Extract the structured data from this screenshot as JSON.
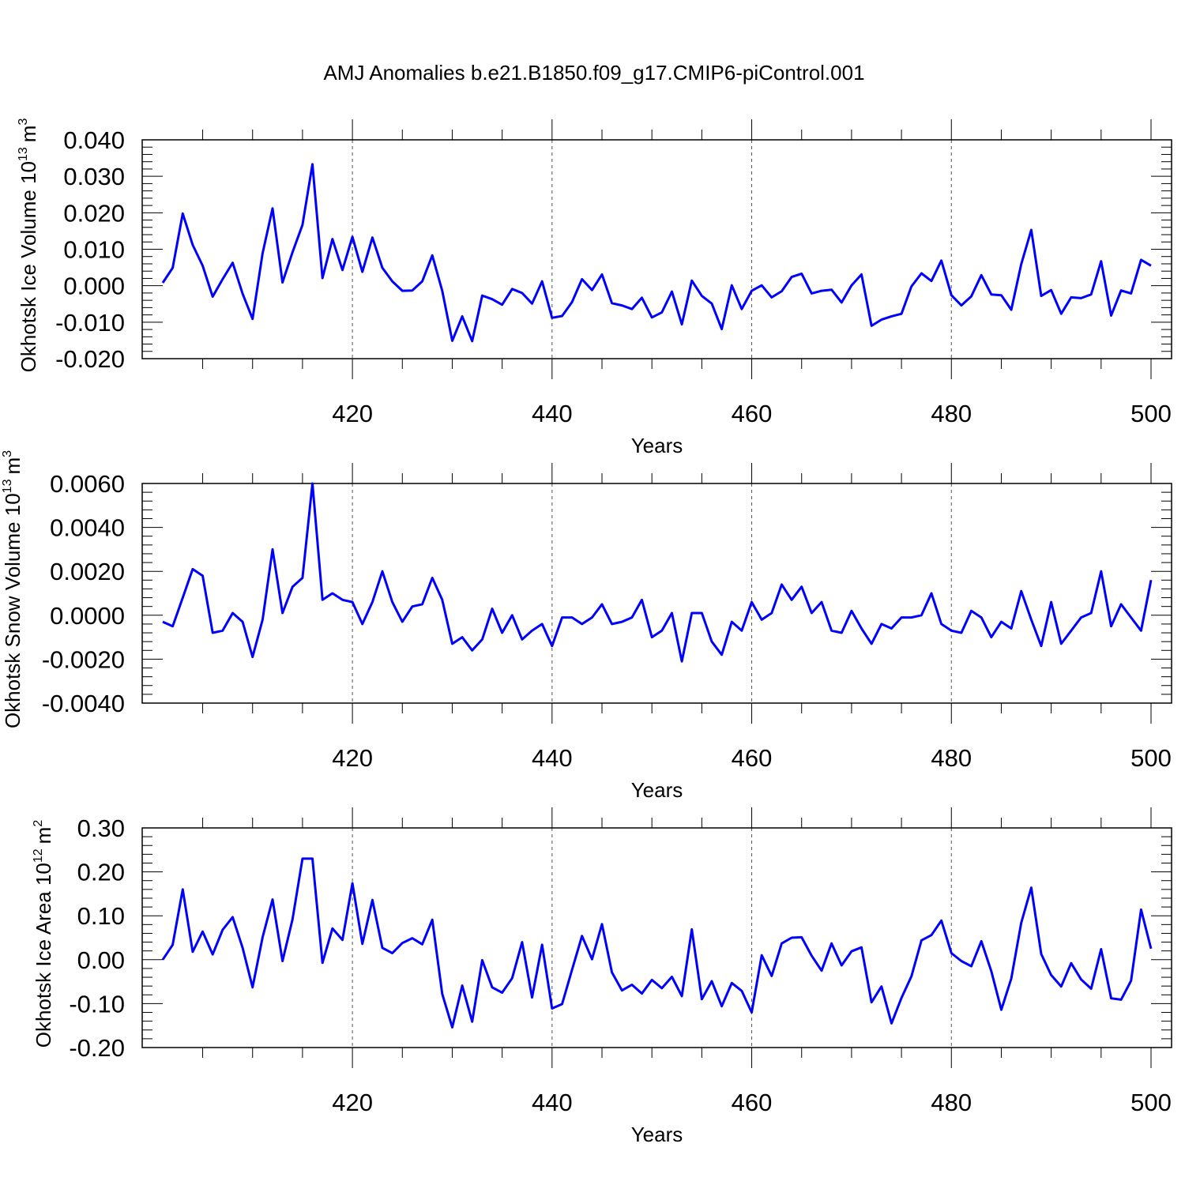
{
  "title": "AMJ Anomalies b.e21.B1850.f09_g17.CMIP6-piControl.001",
  "chart_data": [
    {
      "type": "line",
      "xlabel": "Years",
      "ylabel": {
        "text": "Okhotsk Ice Volume 10",
        "sup": "13",
        "unit": "m",
        "unit_sup": "3"
      },
      "xlim": [
        401,
        500
      ],
      "ylim": [
        -0.02,
        0.04
      ],
      "xticks": [
        420,
        440,
        460,
        480,
        500
      ],
      "xtick_labels": [
        "420",
        "440",
        "460",
        "480",
        "500"
      ],
      "yticks": [
        -0.02,
        -0.01,
        0.0,
        0.01,
        0.02,
        0.03,
        0.04
      ],
      "ytick_labels": [
        "-0.020",
        "-0.010",
        "0.000",
        "0.010",
        "0.020",
        "0.030",
        "0.040"
      ],
      "grid": "dashed vertical at x ticks",
      "color": "#0000ff",
      "x_start": 401,
      "x_step": 1,
      "values": [
        0.0008,
        0.0049,
        0.0198,
        0.0112,
        0.0055,
        -0.003,
        0.0018,
        0.0063,
        -0.0022,
        -0.0091,
        0.0089,
        0.0212,
        0.0009,
        0.0092,
        0.0167,
        0.0333,
        0.0021,
        0.0128,
        0.0043,
        0.0134,
        0.0038,
        0.0132,
        0.0049,
        0.0012,
        -0.0014,
        -0.0013,
        0.0012,
        0.0083,
        -0.0014,
        -0.0151,
        -0.0084,
        -0.0152,
        -0.0027,
        -0.0037,
        -0.0052,
        -0.0009,
        -0.002,
        -0.0049,
        0.0012,
        -0.0088,
        -0.0083,
        -0.0045,
        0.0018,
        -0.0012,
        0.0031,
        -0.0048,
        -0.0054,
        -0.0064,
        -0.0033,
        -0.0087,
        -0.0073,
        -0.0016,
        -0.0106,
        0.0014,
        -0.0028,
        -0.0049,
        -0.0119,
        0.0001,
        -0.0064,
        -0.0014,
        0.0001,
        -0.0032,
        -0.0015,
        0.0024,
        0.0033,
        -0.0021,
        -0.0014,
        -0.0011,
        -0.0046,
        0.0001,
        0.0031,
        -0.011,
        -0.0093,
        -0.0084,
        -0.0077,
        -0.0002,
        0.0034,
        0.0013,
        0.0069,
        -0.0026,
        -0.0054,
        -0.0029,
        0.0029,
        -0.0024,
        -0.0026,
        -0.0066,
        0.0059,
        0.0153,
        -0.0028,
        -0.0012,
        -0.0077,
        -0.0032,
        -0.0034,
        -0.0024,
        0.0067,
        -0.0082,
        -0.0013,
        -0.0021,
        0.0071,
        0.0055
      ]
    },
    {
      "type": "line",
      "xlabel": "Years",
      "ylabel": {
        "text": "Okhotsk Snow Volume 10",
        "sup": "13",
        "unit": "m",
        "unit_sup": "3"
      },
      "xlim": [
        401,
        500
      ],
      "ylim": [
        -0.004,
        0.006
      ],
      "xticks": [
        420,
        440,
        460,
        480,
        500
      ],
      "xtick_labels": [
        "420",
        "440",
        "460",
        "480",
        "500"
      ],
      "yticks": [
        -0.004,
        -0.002,
        0.0,
        0.002,
        0.004,
        0.006
      ],
      "ytick_labels": [
        "-0.0040",
        "-0.0020",
        "0.0000",
        "0.0020",
        "0.0040",
        "0.0060"
      ],
      "grid": "dashed vertical at x ticks",
      "color": "#0000ff",
      "x_start": 401,
      "x_step": 1,
      "values": [
        -0.0003,
        -0.0005,
        0.0008,
        0.0021,
        0.0018,
        -0.0008,
        -0.0007,
        0.0001,
        -0.0003,
        -0.0019,
        -0.0002,
        0.003,
        0.0001,
        0.0013,
        0.0017,
        0.006,
        0.0007,
        0.001,
        0.0007,
        0.0006,
        -0.0004,
        0.0006,
        0.002,
        0.0006,
        -0.0003,
        0.0004,
        0.0005,
        0.0017,
        0.0007,
        -0.0013,
        -0.001,
        -0.0016,
        -0.0011,
        0.0003,
        -0.0008,
        0.0,
        -0.0011,
        -0.0007,
        -0.0004,
        -0.0014,
        -0.0001,
        -0.0001,
        -0.0004,
        -0.0001,
        0.0005,
        -0.0004,
        -0.0003,
        -0.0001,
        0.0007,
        -0.001,
        -0.0007,
        0.0001,
        -0.0021,
        0.0001,
        0.0001,
        -0.0012,
        -0.0018,
        -0.0003,
        -0.0007,
        0.0006,
        -0.0002,
        0.0001,
        0.0014,
        0.0007,
        0.0013,
        0.0001,
        0.0006,
        -0.0007,
        -0.0008,
        0.0002,
        -0.0006,
        -0.0013,
        -0.0004,
        -0.0006,
        -0.0001,
        -0.0001,
        0.0,
        0.001,
        -0.0004,
        -0.0007,
        -0.0008,
        0.0002,
        -0.0001,
        -0.001,
        -0.0003,
        -0.0006,
        0.0011,
        -0.0002,
        -0.0014,
        0.0006,
        -0.0013,
        -0.0007,
        -0.0001,
        0.0001,
        0.002,
        -0.0005,
        0.0005,
        -0.0001,
        -0.0007,
        0.0016
      ]
    },
    {
      "type": "line",
      "xlabel": "Years",
      "ylabel": {
        "text": "Okhotsk Ice Area 10",
        "sup": "12",
        "unit": "m",
        "unit_sup": "2"
      },
      "xlim": [
        401,
        500
      ],
      "ylim": [
        -0.2,
        0.3
      ],
      "xticks": [
        420,
        440,
        460,
        480,
        500
      ],
      "xtick_labels": [
        "420",
        "440",
        "460",
        "480",
        "500"
      ],
      "yticks": [
        -0.2,
        -0.1,
        0.0,
        0.1,
        0.2,
        0.3
      ],
      "ytick_labels": [
        "-0.20",
        "-0.10",
        "0.00",
        "0.10",
        "0.20",
        "0.30"
      ],
      "grid": "dashed vertical at x ticks",
      "color": "#0000ff",
      "x_start": 401,
      "x_step": 1,
      "values": [
        0.0,
        0.034,
        0.16,
        0.018,
        0.064,
        0.012,
        0.068,
        0.097,
        0.027,
        -0.063,
        0.051,
        0.137,
        -0.003,
        0.092,
        0.23,
        0.23,
        -0.007,
        0.071,
        0.045,
        0.174,
        0.036,
        0.136,
        0.027,
        0.015,
        0.038,
        0.049,
        0.035,
        0.091,
        -0.078,
        -0.154,
        -0.059,
        -0.141,
        -0.001,
        -0.063,
        -0.075,
        -0.042,
        0.04,
        -0.086,
        0.034,
        -0.111,
        -0.101,
        -0.023,
        0.054,
        0.001,
        0.081,
        -0.029,
        -0.07,
        -0.057,
        -0.077,
        -0.046,
        -0.065,
        -0.039,
        -0.083,
        0.069,
        -0.09,
        -0.049,
        -0.106,
        -0.053,
        -0.071,
        -0.12,
        0.01,
        -0.037,
        0.037,
        0.05,
        0.051,
        0.009,
        -0.025,
        0.037,
        -0.013,
        0.019,
        0.028,
        -0.097,
        -0.061,
        -0.145,
        -0.087,
        -0.038,
        0.044,
        0.056,
        0.089,
        0.015,
        -0.003,
        -0.015,
        0.042,
        -0.026,
        -0.114,
        -0.043,
        0.084,
        0.164,
        0.013,
        -0.035,
        -0.061,
        -0.008,
        -0.045,
        -0.066,
        0.024,
        -0.088,
        -0.091,
        -0.048,
        0.114,
        0.025
      ]
    }
  ]
}
